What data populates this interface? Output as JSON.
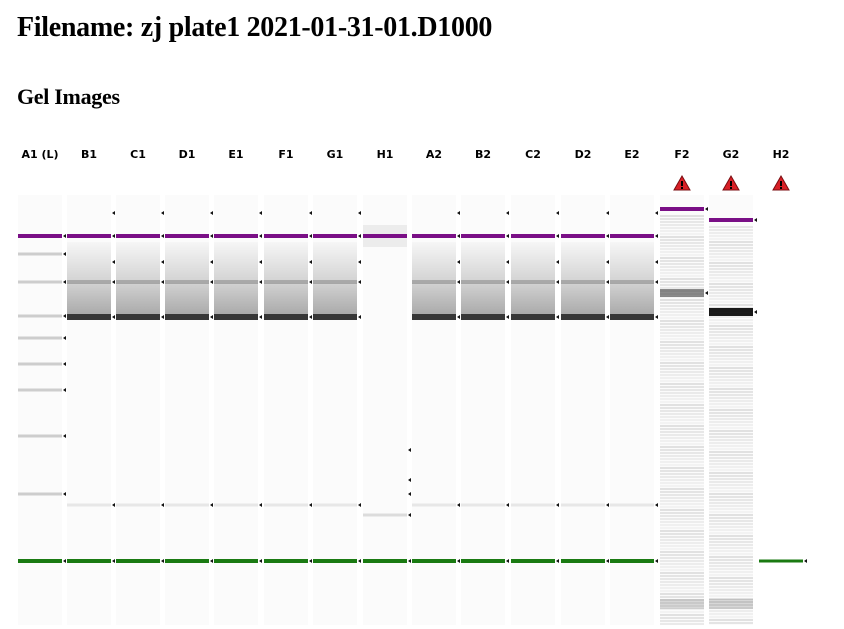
{
  "document": {
    "title": "Filename: zj plate1 2021-01-31-01.D1000",
    "section_title": "Gel Images"
  },
  "gel": {
    "lanes": [
      {
        "label": "A1 (L)",
        "kind": "ladder",
        "warning": false
      },
      {
        "label": "B1",
        "kind": "sample",
        "warning": false
      },
      {
        "label": "C1",
        "kind": "sample",
        "warning": false
      },
      {
        "label": "D1",
        "kind": "sample",
        "warning": false
      },
      {
        "label": "E1",
        "kind": "sample",
        "warning": false
      },
      {
        "label": "F1",
        "kind": "sample",
        "warning": false
      },
      {
        "label": "G1",
        "kind": "sample",
        "warning": false
      },
      {
        "label": "H1",
        "kind": "faint",
        "warning": false
      },
      {
        "label": "A2",
        "kind": "sample",
        "warning": false
      },
      {
        "label": "B2",
        "kind": "sample",
        "warning": false
      },
      {
        "label": "C2",
        "kind": "sample",
        "warning": false
      },
      {
        "label": "D2",
        "kind": "sample",
        "warning": false
      },
      {
        "label": "E2",
        "kind": "sample",
        "warning": false
      },
      {
        "label": "F2",
        "kind": "noisy",
        "warning": true
      },
      {
        "label": "G2",
        "kind": "noisy",
        "warning": true
      },
      {
        "label": "H2",
        "kind": "empty",
        "warning": true
      }
    ],
    "colors": {
      "upper_marker": "#7a0f86",
      "lower_marker": "#1a7a12",
      "warning_fill": "#d81f26",
      "background": "#ffffff"
    },
    "icons": {
      "warning": "warning-triangle-icon",
      "peak": "peak-marker-icon"
    }
  }
}
